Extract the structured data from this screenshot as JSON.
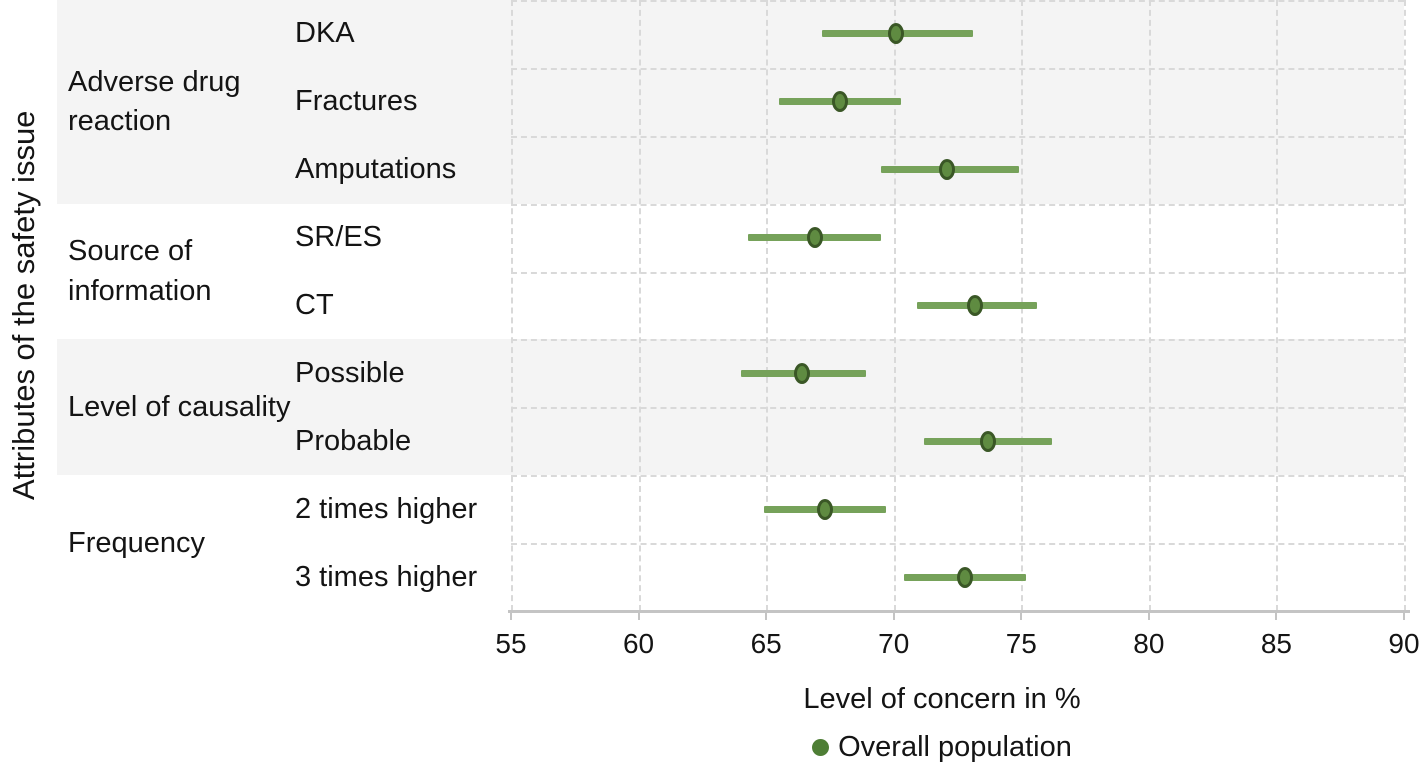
{
  "chart_data": {
    "type": "scatter",
    "subtype": "dot-and-interval forest plot",
    "y_axis_title": "Attributes of the safety issue",
    "x_axis_title": "Level of concern in %",
    "xlim": [
      55,
      90
    ],
    "x_ticks": [
      "55",
      "60",
      "65",
      "70",
      "75",
      "80",
      "85",
      "90"
    ],
    "grid": "dashed horizontal row separators and dashed vertical tick lines",
    "legend": {
      "position": "bottom center",
      "label": "Overall population"
    },
    "groups": [
      {
        "label": "Adverse drug reaction",
        "shaded": true,
        "items": [
          {
            "label": "DKA",
            "value": 70.1,
            "ci_low": 67.2,
            "ci_high": 73.1
          },
          {
            "label": "Fractures",
            "value": 67.9,
            "ci_low": 65.5,
            "ci_high": 70.3
          },
          {
            "label": "Amputations",
            "value": 72.1,
            "ci_low": 69.5,
            "ci_high": 74.9
          }
        ]
      },
      {
        "label": "Source of information",
        "shaded": false,
        "items": [
          {
            "label": "SR/ES",
            "value": 66.9,
            "ci_low": 64.3,
            "ci_high": 69.5
          },
          {
            "label": "CT",
            "value": 73.2,
            "ci_low": 70.9,
            "ci_high": 75.6
          }
        ]
      },
      {
        "label": "Level of causality",
        "shaded": true,
        "items": [
          {
            "label": "Possible",
            "value": 66.4,
            "ci_low": 64.0,
            "ci_high": 68.9
          },
          {
            "label": "Probable",
            "value": 73.7,
            "ci_low": 71.2,
            "ci_high": 76.2
          }
        ]
      },
      {
        "label": "Frequency",
        "shaded": false,
        "items": [
          {
            "label": "2 times higher",
            "value": 67.3,
            "ci_low": 64.9,
            "ci_high": 69.7
          },
          {
            "label": "3 times higher",
            "value": 72.8,
            "ci_low": 70.4,
            "ci_high": 75.2
          }
        ]
      }
    ],
    "colors": {
      "interval_line": "#76a25a",
      "point_fill": "#5f8b41",
      "point_stroke": "#3a5726",
      "legend_dot": "#4e7e35",
      "band_shade": "#f4f4f4",
      "grid": "#d9d9d9",
      "axis": "#c4c4c4",
      "text": "#141414"
    }
  }
}
